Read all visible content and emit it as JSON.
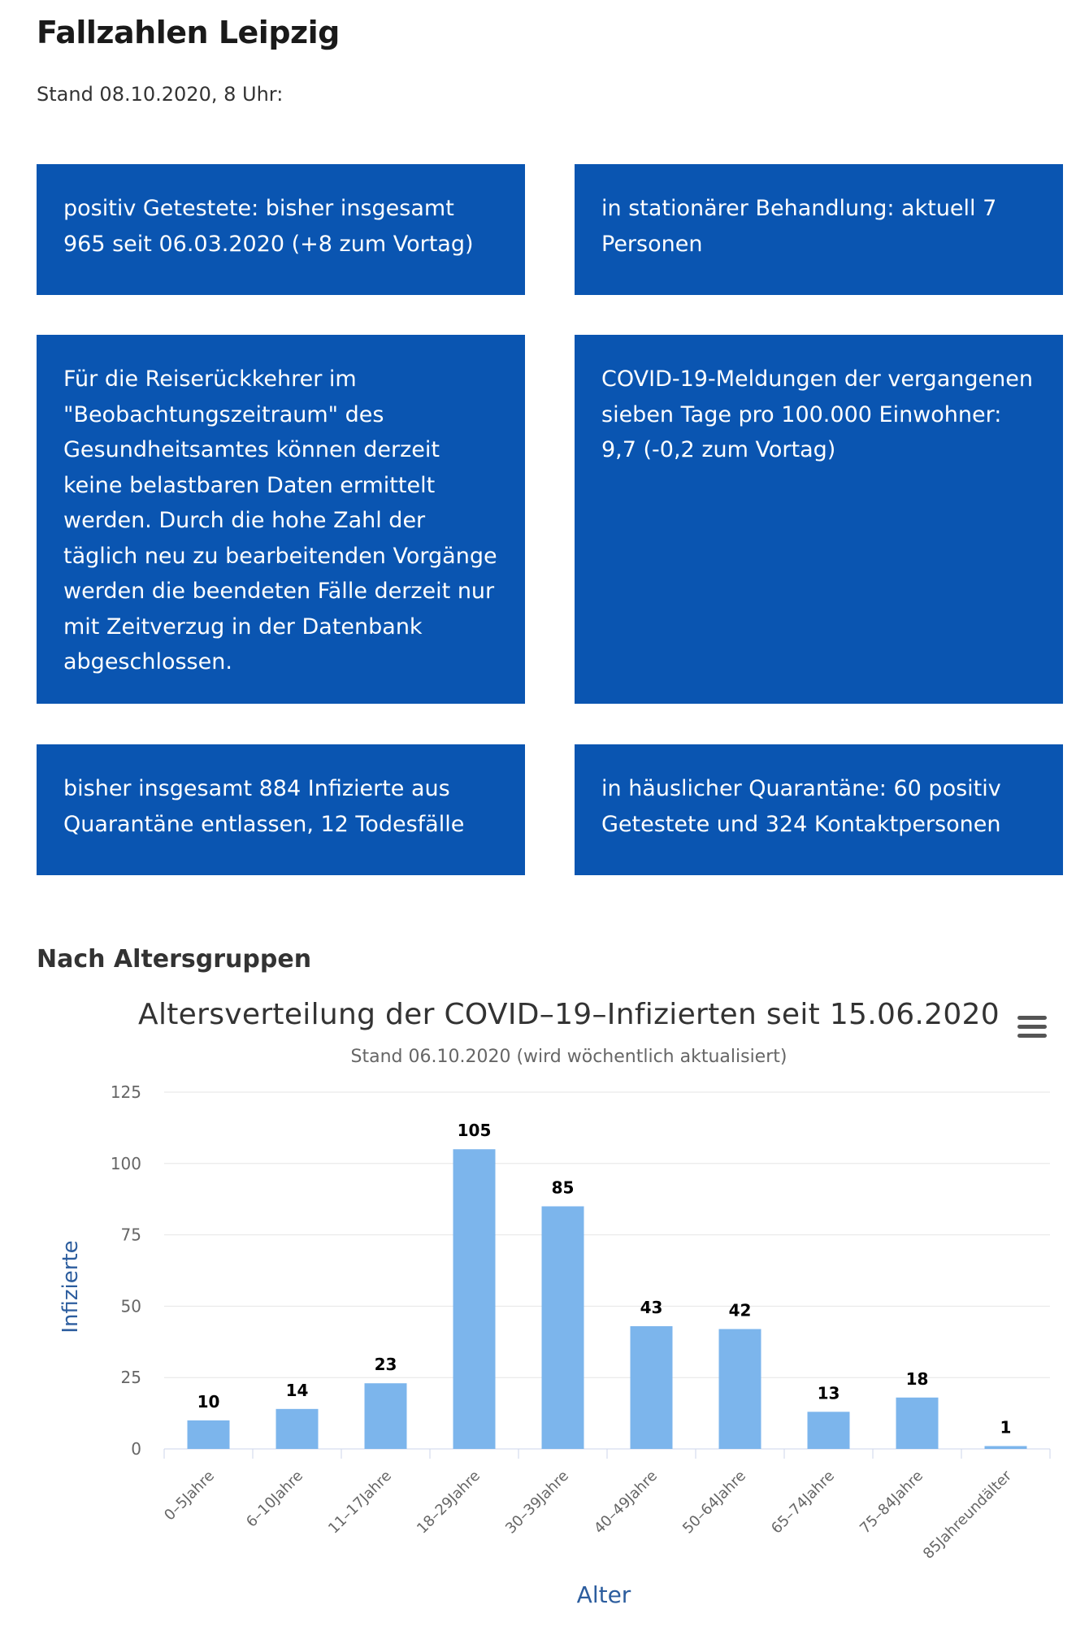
{
  "page": {
    "title": "Fallzahlen Leipzig",
    "stand": "Stand 08.10.2020, 8 Uhr:"
  },
  "boxes": [
    "positiv Getestete: bisher insgesamt 965 seit 06.03.2020 (+8 zum Vortag)",
    "in stationärer Behandlung: aktuell 7 Personen",
    "Für die Reiserückkehrer im \"Beobachtungszeitraum\" des Gesundheitsamtes können derzeit keine belastbaren Daten ermittelt werden. Durch die hohe Zahl der täglich neu zu bearbeitenden Vorgänge werden die beendeten Fälle derzeit nur mit Zeitverzug in der Datenbank abgeschlossen.",
    "COVID-19-Meldungen der vergangenen sieben Tage pro 100.000 Einwohner: 9,7 (-0,2 zum Vortag)",
    "bisher insgesamt 884 Infizierte aus Quarantäne entlassen, 12 Todesfälle",
    "in häuslicher Quarantäne: 60 positiv Getestete und 324 Kontaktpersonen"
  ],
  "section": {
    "title": "Nach Altersgruppen"
  },
  "icons": {
    "chart_menu": "hamburger-menu-icon"
  },
  "colors": {
    "box_bg": "#0a55b1",
    "bar": "#7cb5ec",
    "axis_title": "#2c5d9e"
  },
  "chart_data": {
    "type": "bar",
    "title": "Altersverteilung der COVID–19–Infizierten seit 15.06.2020",
    "subtitle": "Stand 06.10.2020 (wird wöchentlich aktualisiert)",
    "categories": [
      "0–5Jahre",
      "6–10Jahre",
      "11–17Jahre",
      "18–29Jahre",
      "30–39Jahre",
      "40–49Jahre",
      "50–64Jahre",
      "65–74Jahre",
      "75–84Jahre",
      "85Jahreundälter"
    ],
    "values": [
      10,
      14,
      23,
      105,
      85,
      43,
      42,
      13,
      18,
      1
    ],
    "xlabel": "Alter",
    "ylabel": "Infizierte",
    "ylim": [
      0,
      125
    ],
    "yticks": [
      0,
      25,
      50,
      75,
      100,
      125
    ],
    "grid": true,
    "legend": "none",
    "data_labels": true
  }
}
